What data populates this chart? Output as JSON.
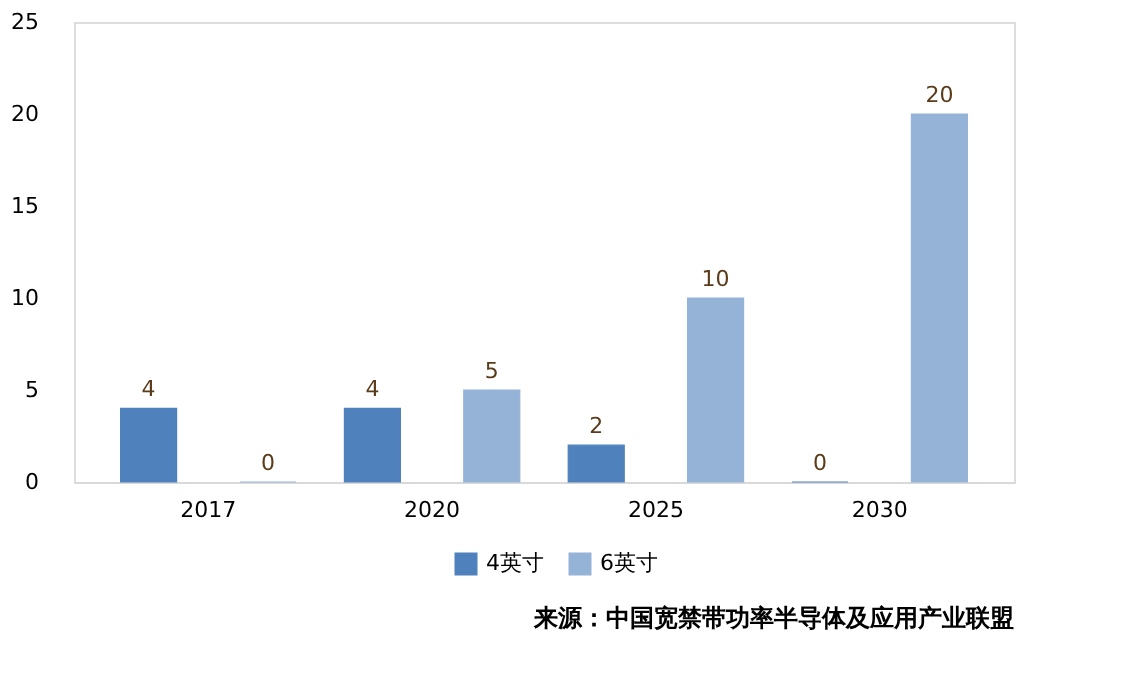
{
  "chart_data": {
    "type": "bar",
    "categories": [
      "2017",
      "2020",
      "2025",
      "2030"
    ],
    "series": [
      {
        "name": "4英寸",
        "color": "#4f81bd",
        "values": [
          4,
          4,
          2,
          0
        ]
      },
      {
        "name": "6英寸",
        "color": "#95b3d7",
        "values": [
          0,
          5,
          10,
          20
        ]
      }
    ],
    "ylim": [
      0,
      25
    ],
    "yticks": [
      0,
      5,
      10,
      15,
      20,
      25
    ],
    "grid": false,
    "legend": "bottom",
    "data_labels": true,
    "annotations": [
      "来源：中国宽禁带功率半导体及应用产业联盟"
    ]
  }
}
